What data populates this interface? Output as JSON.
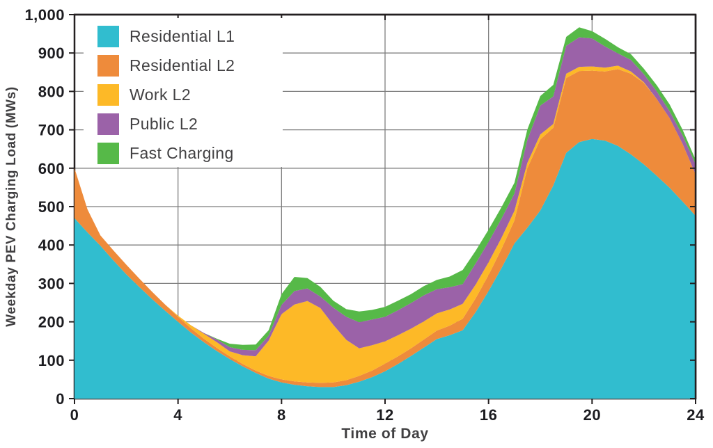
{
  "chart_data": {
    "type": "area",
    "stacked": true,
    "xlabel": "Time of Day",
    "ylabel": "Weekday PEV Charging Load (MWs)",
    "xlim": [
      0,
      24
    ],
    "ylim": [
      0,
      1000
    ],
    "x_ticks": [
      0,
      4,
      8,
      12,
      16,
      20,
      24
    ],
    "x_tick_labels": [
      "0",
      "4",
      "8",
      "12",
      "16",
      "20",
      "24"
    ],
    "y_ticks": [
      0,
      100,
      200,
      300,
      400,
      500,
      600,
      700,
      800,
      900,
      1000
    ],
    "y_tick_labels": [
      "0",
      "100",
      "200",
      "300",
      "400",
      "500",
      "600",
      "700",
      "800",
      "900",
      "1,000"
    ],
    "grid": true,
    "legend_position": "top-left",
    "x": [
      0,
      0.5,
      1,
      1.5,
      2,
      2.5,
      3,
      3.5,
      4,
      4.5,
      5,
      5.5,
      6,
      6.5,
      7,
      7.5,
      8,
      8.5,
      9,
      9.5,
      10,
      10.5,
      11,
      11.5,
      12,
      12.5,
      13,
      13.5,
      14,
      14.5,
      15,
      15.5,
      16,
      16.5,
      17,
      17.5,
      18,
      18.5,
      19,
      19.5,
      20,
      20.5,
      21,
      21.5,
      22,
      22.5,
      23,
      23.5,
      24
    ],
    "series": [
      {
        "name": "Residential L1",
        "color": "#31BDCF",
        "values": [
          470,
          433,
          398,
          360,
          324,
          291,
          259,
          229,
          200,
          172,
          147,
          124,
          103,
          84,
          67,
          52,
          42,
          36,
          32,
          30,
          30,
          35,
          44,
          56,
          71,
          90,
          111,
          133,
          155,
          165,
          178,
          225,
          280,
          340,
          404,
          445,
          490,
          555,
          640,
          668,
          676,
          672,
          658,
          636,
          610,
          580,
          549,
          513,
          476
        ]
      },
      {
        "name": "Residential L2",
        "color": "#EE8B3B",
        "values": [
          130,
          60,
          27,
          26,
          25,
          22,
          19,
          16,
          13,
          11,
          9,
          8,
          7,
          6,
          6,
          7,
          8,
          9,
          10,
          11,
          12,
          13,
          15,
          17,
          20,
          20,
          20,
          21,
          22,
          25,
          30,
          36,
          42,
          50,
          60,
          155,
          185,
          150,
          195,
          185,
          178,
          180,
          200,
          210,
          212,
          200,
          181,
          150,
          108
        ]
      },
      {
        "name": "Work L2",
        "color": "#FDB927",
        "values": [
          0,
          0,
          0,
          0,
          0,
          0,
          0,
          0,
          3,
          8,
          13,
          15,
          13,
          23,
          37,
          92,
          170,
          200,
          212,
          195,
          150,
          105,
          72,
          66,
          58,
          55,
          51,
          47,
          45,
          42,
          39,
          36,
          33,
          29,
          25,
          14,
          13,
          10,
          11,
          11,
          11,
          10,
          9,
          6,
          2,
          0,
          0,
          0,
          0
        ]
      },
      {
        "name": "Public L2",
        "color": "#9B62A8",
        "values": [
          0,
          0,
          0,
          0,
          0,
          0,
          0,
          0,
          0,
          0,
          2,
          7,
          11,
          14,
          16,
          13,
          24,
          35,
          33,
          30,
          45,
          60,
          68,
          67,
          64,
          65,
          67,
          68,
          63,
          58,
          51,
          55,
          53,
          50,
          45,
          60,
          75,
          72,
          73,
          77,
          73,
          55,
          32,
          30,
          21,
          20,
          18,
          22,
          26
        ]
      },
      {
        "name": "Fast Charging",
        "color": "#56B948",
        "values": [
          0,
          0,
          0,
          0,
          0,
          0,
          0,
          0,
          0,
          0,
          0,
          2,
          9,
          13,
          15,
          14,
          28,
          37,
          27,
          25,
          18,
          20,
          28,
          25,
          26,
          25,
          23,
          24,
          24,
          28,
          37,
          33,
          32,
          30,
          28,
          27,
          25,
          30,
          23,
          26,
          19,
          20,
          16,
          15,
          14,
          16,
          18,
          15,
          12
        ]
      }
    ],
    "colors": {
      "background": "#FFFFFF",
      "grid": "#7E7E7E",
      "frame": "#231F20",
      "tick_labels": "#1C1C20",
      "axis_titles": "#414042",
      "legend_background": "#FFFFFF",
      "legend_text": "#414042"
    }
  }
}
